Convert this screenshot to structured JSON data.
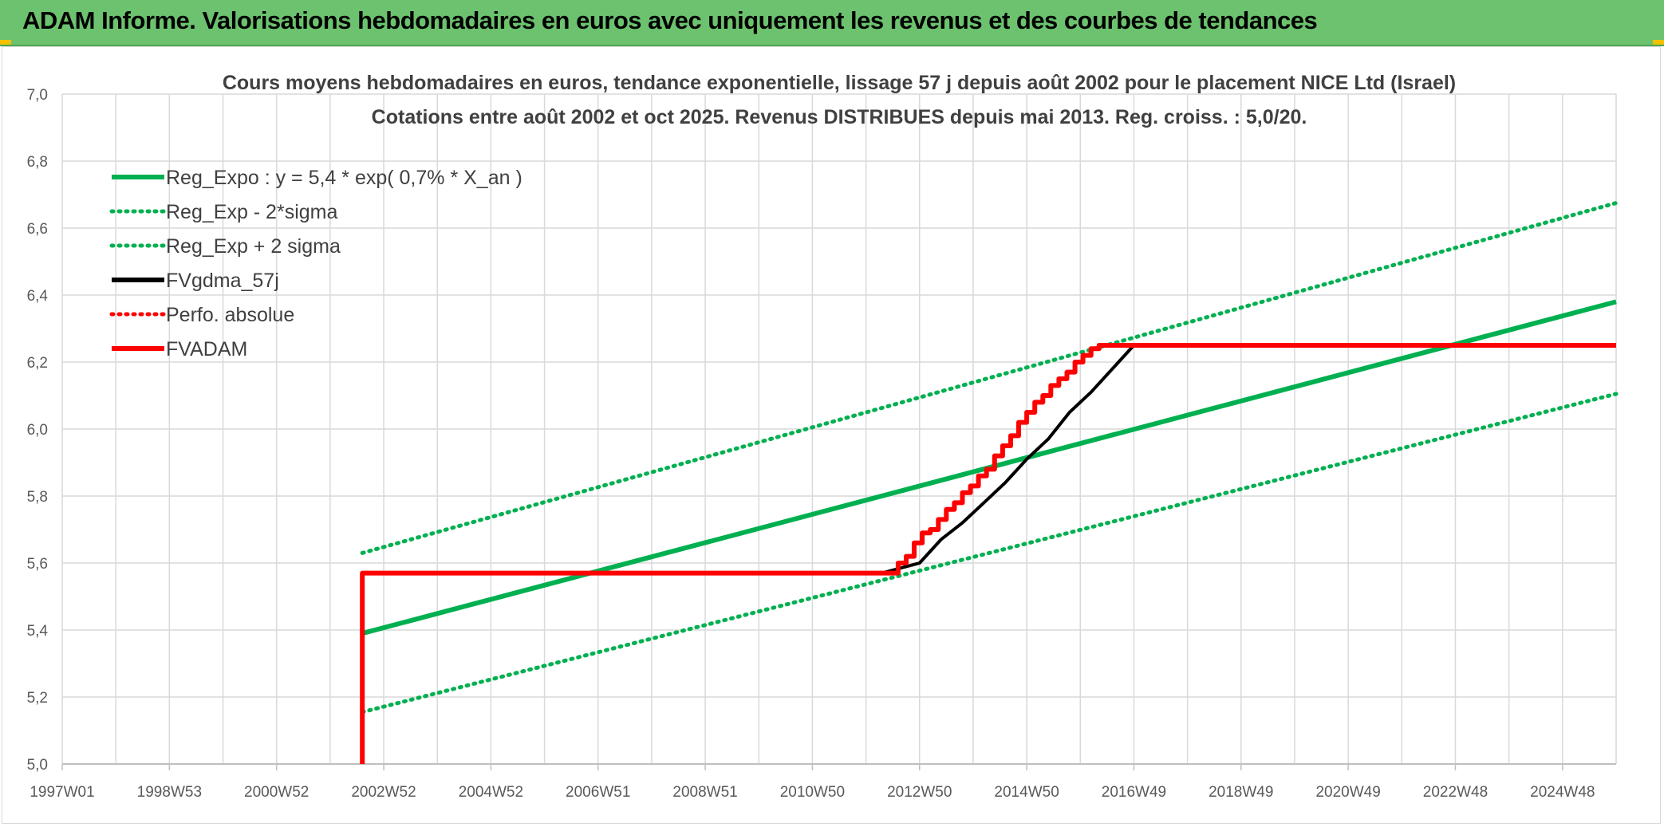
{
  "banner": {
    "title": "ADAM Informe. Valorisations hebdomadaires en euros avec uniquement les revenus et des courbes de tendances"
  },
  "colors": {
    "banner": "#6cc26e",
    "reg_expo": "#00b050",
    "fvgdma": "#000000",
    "fvadam": "#ff0000",
    "grid": "#d9d9d9",
    "accent_corner": "#f2c200"
  },
  "chart_data": {
    "type": "line",
    "title_lines": [
      "Cours moyens hebdomadaires en euros, tendance exponentielle, lissage 57 j depuis août 2002 pour le placement NICE Ltd (Israel)",
      "Cotations entre août 2002 et oct 2025. Revenus DISTRIBUES depuis mai 2013. Reg. croiss. : 5,0/20."
    ],
    "x_tick_labels": [
      "1997W01",
      "1998W53",
      "2000W52",
      "2002W52",
      "2004W52",
      "2006W51",
      "2008W51",
      "2010W50",
      "2012W50",
      "2014W50",
      "2016W49",
      "2018W49",
      "2020W49",
      "2022W48",
      "2024W48"
    ],
    "x_range_years": [
      1997.0,
      2026.0
    ],
    "y_tick_labels": [
      "5,0",
      "5,2",
      "5,4",
      "5,6",
      "5,8",
      "6,0",
      "6,2",
      "6,4",
      "6,6",
      "6,8",
      "7,0"
    ],
    "ylim": [
      5.0,
      7.0
    ],
    "grid": true,
    "legend_position": "top-left",
    "series": [
      {
        "name": "Reg_Expo : y = 5,4 * exp( 0,7% *  X_an )",
        "color": "#00b050",
        "style": "solid",
        "x": [
          2002.6,
          2026.0
        ],
        "y": [
          5.39,
          6.38
        ]
      },
      {
        "name": "Reg_Exp - 2*sigma",
        "color": "#00b050",
        "style": "dotted",
        "x": [
          2002.6,
          2026.0
        ],
        "y": [
          5.155,
          6.105
        ]
      },
      {
        "name": "Reg_Exp + 2 sigma",
        "color": "#00b050",
        "style": "dotted",
        "x": [
          2002.6,
          2026.0
        ],
        "y": [
          5.63,
          6.675
        ]
      },
      {
        "name": "FVgdma_57j",
        "color": "#000000",
        "style": "solid",
        "x": [
          2002.6,
          2002.6,
          2012.3,
          2013.0,
          2013.4,
          2013.8,
          2014.2,
          2014.6,
          2015.0,
          2015.4,
          2015.8,
          2016.2,
          2016.6,
          2017.0,
          2026.0
        ],
        "y": [
          5.0,
          5.57,
          5.57,
          5.6,
          5.67,
          5.72,
          5.78,
          5.84,
          5.91,
          5.97,
          6.05,
          6.11,
          6.18,
          6.25,
          6.25
        ]
      },
      {
        "name": "Perfo. absolue",
        "color": "#ff0000",
        "style": "dotted",
        "x": [],
        "y": []
      },
      {
        "name": "FVADAM",
        "color": "#ff0000",
        "style": "solid",
        "x": [
          2002.6,
          2002.6,
          2012.6,
          2012.6,
          2012.75,
          2012.75,
          2012.9,
          2012.9,
          2013.05,
          2013.05,
          2013.2,
          2013.2,
          2013.35,
          2013.35,
          2013.5,
          2013.5,
          2013.65,
          2013.65,
          2013.8,
          2013.8,
          2013.95,
          2013.95,
          2014.1,
          2014.1,
          2014.25,
          2014.25,
          2014.4,
          2014.4,
          2014.55,
          2014.55,
          2014.7,
          2014.7,
          2014.85,
          2014.85,
          2015.0,
          2015.0,
          2015.15,
          2015.15,
          2015.3,
          2015.3,
          2015.45,
          2015.45,
          2015.6,
          2015.6,
          2015.75,
          2015.75,
          2015.9,
          2015.9,
          2016.05,
          2016.05,
          2016.2,
          2016.2,
          2016.35,
          2016.35,
          2016.5,
          2016.5,
          2016.65,
          2016.65,
          2016.8,
          2016.8,
          2026.0
        ],
        "y": [
          5.0,
          5.57,
          5.57,
          5.6,
          5.6,
          5.62,
          5.62,
          5.66,
          5.66,
          5.69,
          5.69,
          5.7,
          5.7,
          5.73,
          5.73,
          5.76,
          5.76,
          5.78,
          5.78,
          5.81,
          5.81,
          5.83,
          5.83,
          5.86,
          5.86,
          5.88,
          5.88,
          5.92,
          5.92,
          5.95,
          5.95,
          5.98,
          5.98,
          6.02,
          6.02,
          6.05,
          6.05,
          6.08,
          6.08,
          6.1,
          6.1,
          6.13,
          6.13,
          6.15,
          6.15,
          6.17,
          6.17,
          6.2,
          6.2,
          6.22,
          6.22,
          6.24,
          6.24,
          6.25,
          6.25,
          6.25,
          6.25,
          6.25,
          6.25,
          6.25,
          6.25
        ]
      }
    ]
  }
}
